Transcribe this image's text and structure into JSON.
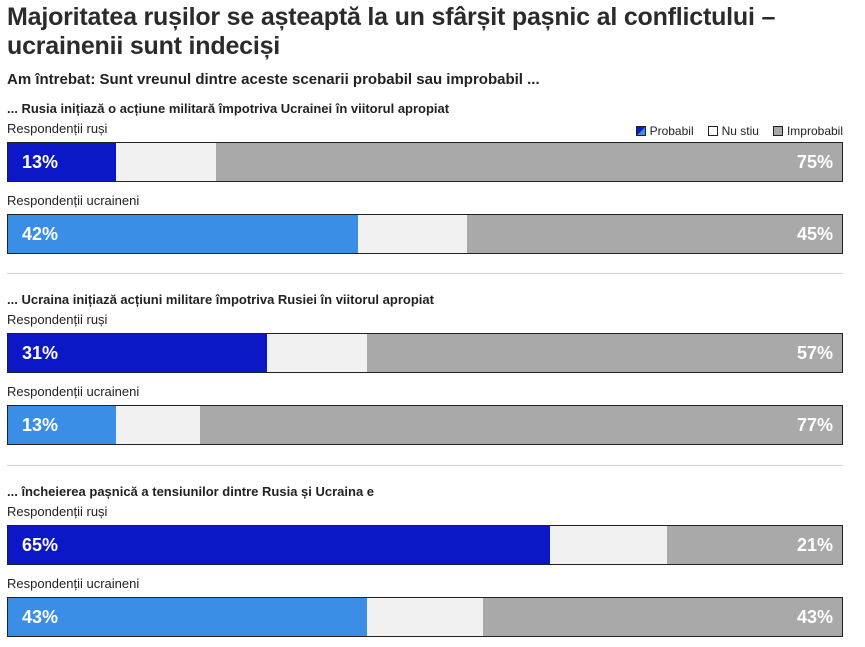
{
  "title": "Majoritatea rușilor se așteaptă la un sfârșit pașnic al conflictului – ucrainenii sunt indeciși",
  "subtitle": "Am întrebat: Sunt vreunul dintre aceste scenarii probabil sau improbabil ...",
  "legend": {
    "probabil": "Probabil",
    "nu_stiu": "Nu stiu",
    "improbabil": "Improbabil"
  },
  "colors": {
    "russian": "#0c17c8",
    "ukrainian": "#3a8ee6",
    "unknown": "#f1f1f1",
    "improbable": "#a9a9a9"
  },
  "chart_data": {
    "type": "bar",
    "stacked": true,
    "orientation": "horizontal",
    "series_names": [
      "Probabil",
      "Nu stiu",
      "Improbabil"
    ],
    "questions": [
      {
        "label": "... Rusia inițiază o acțiune militară împotriva Ucrainei în viitorul apropiat",
        "groups": [
          {
            "label": "Respondenții ruși",
            "group": "russian",
            "probable": 13,
            "unknown": 12,
            "improbable": 75,
            "probable_label": "13%",
            "improbable_label": "75%"
          },
          {
            "label": "Respondenții ucraineni",
            "group": "ukrainian",
            "probable": 42,
            "unknown": 13,
            "improbable": 45,
            "probable_label": "42%",
            "improbable_label": "45%"
          }
        ]
      },
      {
        "label": "... Ucraina inițiază acțiuni militare împotriva Rusiei în viitorul apropiat",
        "groups": [
          {
            "label": "Respondenții ruși",
            "group": "russian",
            "probable": 31,
            "unknown": 12,
            "improbable": 57,
            "probable_label": "31%",
            "improbable_label": "57%"
          },
          {
            "label": "Respondenții ucraineni",
            "group": "ukrainian",
            "probable": 13,
            "unknown": 10,
            "improbable": 77,
            "probable_label": "13%",
            "improbable_label": "77%"
          }
        ]
      },
      {
        "label": "... încheierea pașnică a tensiunilor dintre Rusia și Ucraina e",
        "groups": [
          {
            "label": "Respondenții ruși",
            "group": "russian",
            "probable": 65,
            "unknown": 14,
            "improbable": 21,
            "probable_label": "65%",
            "improbable_label": "21%"
          },
          {
            "label": "Respondenții ucraineni",
            "group": "ukrainian",
            "probable": 43,
            "unknown": 14,
            "improbable": 43,
            "probable_label": "43%",
            "improbable_label": "43%"
          }
        ]
      }
    ]
  }
}
